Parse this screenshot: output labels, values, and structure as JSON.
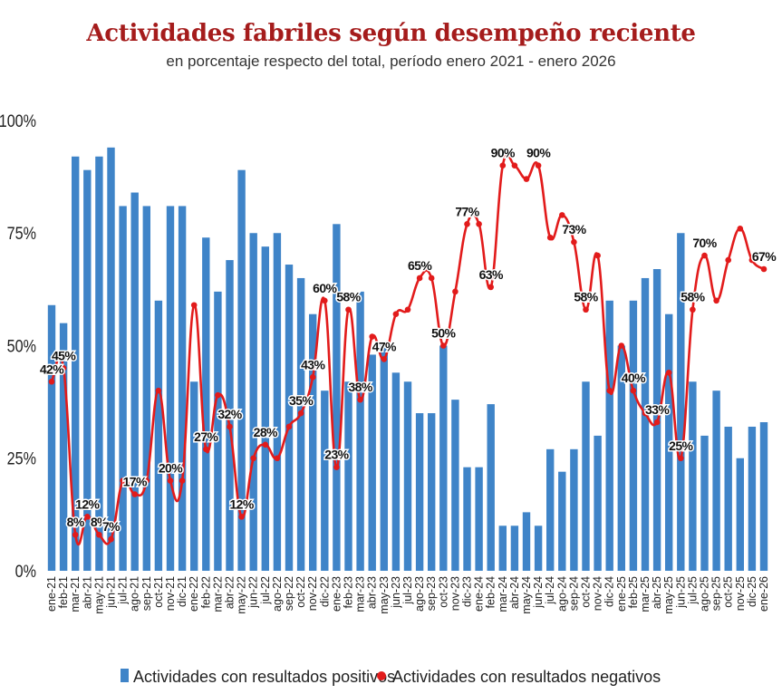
{
  "chart_data": {
    "type": "bar+line",
    "title": "Actividades fabriles según desempeño reciente",
    "subtitle": "en porcentaje respecto del total, período enero 2021 - enero 2026",
    "ylim": [
      0,
      100
    ],
    "yticks": [
      "0%",
      "25%",
      "50%",
      "75%",
      "100%"
    ],
    "grid": false,
    "legend_position": "bottom",
    "categories": [
      "ene-21",
      "feb-21",
      "mar-21",
      "abr-21",
      "may-21",
      "jun-21",
      "jul-21",
      "ago-21",
      "sep-21",
      "oct-21",
      "nov-21",
      "dic-21",
      "ene-22",
      "feb-22",
      "mar-22",
      "abr-22",
      "may-22",
      "jun-22",
      "jul-22",
      "ago-22",
      "sep-22",
      "oct-22",
      "nov-22",
      "dic-22",
      "ene-23",
      "feb-23",
      "mar-23",
      "abr-23",
      "may-23",
      "jun-23",
      "jul-23",
      "ago-23",
      "sep-23",
      "oct-23",
      "nov-23",
      "dic-23",
      "ene-24",
      "feb-24",
      "mar-24",
      "abr-24",
      "may-24",
      "jun-24",
      "jul-24",
      "ago-24",
      "sep-24",
      "oct-24",
      "nov-24",
      "dic-24",
      "ene-25",
      "feb-25",
      "mar-25",
      "abr-25",
      "may-25",
      "jun-25",
      "jul-25",
      "ago-25",
      "sep-25",
      "oct-25",
      "nov-25",
      "dic-25",
      "ene-26"
    ],
    "series": [
      {
        "name": "Actividades con resultados positivos",
        "type": "bar",
        "color": "#3f84c8",
        "values": [
          59,
          55,
          92,
          89,
          92,
          94,
          81,
          84,
          81,
          60,
          81,
          81,
          42,
          74,
          62,
          69,
          89,
          75,
          72,
          75,
          68,
          65,
          57,
          40,
          77,
          42,
          62,
          48,
          51,
          44,
          42,
          35,
          35,
          50,
          38,
          23,
          23,
          37,
          10,
          10,
          13,
          10,
          27,
          22,
          27,
          42,
          30,
          60,
          50,
          60,
          65,
          67,
          57,
          75,
          42,
          30,
          40,
          32,
          25,
          32,
          33
        ]
      },
      {
        "name": "Actividades con resultados negativos",
        "type": "line",
        "color": "#e21b1b",
        "values": [
          42,
          45,
          8,
          12,
          8,
          7,
          20,
          17,
          20,
          40,
          20,
          20,
          59,
          27,
          39,
          32,
          12,
          25,
          28,
          25,
          32,
          35,
          43,
          60,
          23,
          58,
          38,
          52,
          47,
          57,
          58,
          65,
          65,
          50,
          62,
          77,
          77,
          63,
          90,
          90,
          87,
          90,
          74,
          79,
          73,
          58,
          70,
          40,
          50,
          40,
          35,
          33,
          44,
          25,
          58,
          70,
          60,
          69,
          76,
          69,
          67
        ],
        "labels": [
          "42%",
          "45%",
          "8%",
          "12%",
          "8%",
          "7%",
          "",
          "17%",
          "",
          "",
          "20%",
          "",
          "",
          "27%",
          "",
          "32%",
          "12%",
          "",
          "28%",
          "",
          "",
          "35%",
          "43%",
          "60%",
          "23%",
          "58%",
          "38%",
          "",
          "47%",
          "",
          "",
          "65%",
          "",
          "50%",
          "",
          "77%",
          "",
          "63%",
          "90%",
          "",
          "",
          "90%",
          "",
          "",
          "73%",
          "58%",
          "",
          "",
          "",
          "40%",
          "",
          "33%",
          "",
          "25%",
          "58%",
          "70%",
          "",
          "",
          "",
          "",
          "67%"
        ]
      }
    ]
  }
}
